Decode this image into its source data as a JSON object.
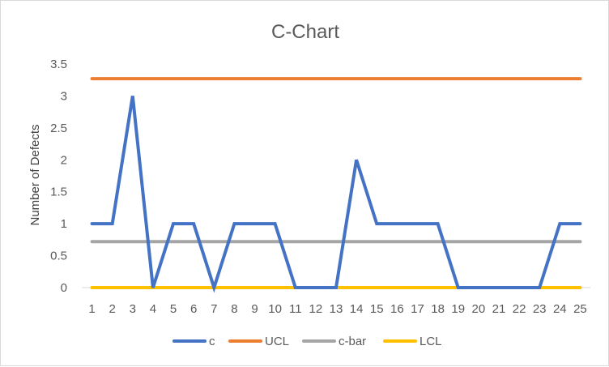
{
  "chart_data": {
    "type": "line",
    "title": "C-Chart",
    "xlabel": "",
    "ylabel": "Number of Defects",
    "categories": [
      "1",
      "2",
      "3",
      "4",
      "5",
      "6",
      "7",
      "8",
      "9",
      "10",
      "11",
      "12",
      "13",
      "14",
      "15",
      "16",
      "17",
      "18",
      "19",
      "20",
      "21",
      "22",
      "23",
      "24",
      "25"
    ],
    "yticks": [
      "0",
      "0.5",
      "1",
      "1.5",
      "2",
      "2.5",
      "3",
      "3.5"
    ],
    "ylim": [
      0,
      3.5
    ],
    "grid": false,
    "legend_position": "bottom",
    "series": [
      {
        "name": "c",
        "color": "#4472c4",
        "values": [
          1,
          1,
          3,
          0,
          1,
          1,
          0,
          1,
          1,
          1,
          0,
          0,
          0,
          2,
          1,
          1,
          1,
          1,
          0,
          0,
          0,
          0,
          0,
          1,
          1
        ]
      },
      {
        "name": "UCL",
        "color": "#ed7d31",
        "values": [
          3.27,
          3.27,
          3.27,
          3.27,
          3.27,
          3.27,
          3.27,
          3.27,
          3.27,
          3.27,
          3.27,
          3.27,
          3.27,
          3.27,
          3.27,
          3.27,
          3.27,
          3.27,
          3.27,
          3.27,
          3.27,
          3.27,
          3.27,
          3.27,
          3.27
        ]
      },
      {
        "name": "c-bar",
        "color": "#a5a5a5",
        "values": [
          0.72,
          0.72,
          0.72,
          0.72,
          0.72,
          0.72,
          0.72,
          0.72,
          0.72,
          0.72,
          0.72,
          0.72,
          0.72,
          0.72,
          0.72,
          0.72,
          0.72,
          0.72,
          0.72,
          0.72,
          0.72,
          0.72,
          0.72,
          0.72,
          0.72
        ]
      },
      {
        "name": "LCL",
        "color": "#ffc000",
        "values": [
          0,
          0,
          0,
          0,
          0,
          0,
          0,
          0,
          0,
          0,
          0,
          0,
          0,
          0,
          0,
          0,
          0,
          0,
          0,
          0,
          0,
          0,
          0,
          0,
          0
        ]
      }
    ]
  }
}
